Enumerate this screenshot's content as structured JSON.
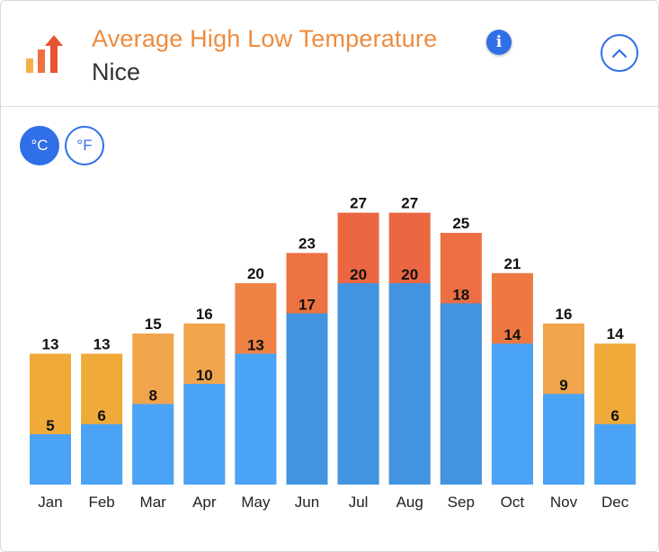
{
  "header": {
    "title": "Average High Low Temperature",
    "city": "Nice",
    "info_icon": "info-icon",
    "collapse_icon": "chevron-up-icon",
    "logo_icon": "temperature-bars-icon"
  },
  "units": {
    "celsius_label": "°C",
    "fahrenheit_label": "°F",
    "selected": "°C"
  },
  "colors": {
    "accent": "#2f6fe8",
    "title": "#ee8b3d"
  },
  "chart_data": {
    "type": "bar",
    "title": "Average High Low Temperature",
    "categories": [
      "Jan",
      "Feb",
      "Mar",
      "Apr",
      "May",
      "Jun",
      "Jul",
      "Aug",
      "Sep",
      "Oct",
      "Nov",
      "Dec"
    ],
    "series": [
      {
        "name": "High",
        "values": [
          13,
          13,
          15,
          16,
          20,
          23,
          27,
          27,
          25,
          21,
          16,
          14
        ],
        "colors": [
          "#efaa3a",
          "#efaa3a",
          "#f0a44c",
          "#f0a44c",
          "#ee8244",
          "#ed7241",
          "#ea6741",
          "#ea6741",
          "#ec6e43",
          "#ed7941",
          "#f0a44c",
          "#efaa3a"
        ]
      },
      {
        "name": "Low",
        "values": [
          5,
          6,
          8,
          10,
          13,
          17,
          20,
          20,
          18,
          14,
          9,
          6
        ],
        "colors": [
          "#4aa3f5",
          "#4aa3f5",
          "#4aa3f5",
          "#4aa3f5",
          "#4aa3f5",
          "#4294e0",
          "#4294e0",
          "#4294e0",
          "#4294e0",
          "#4aa3f5",
          "#4aa3f5",
          "#4aa3f5"
        ]
      }
    ],
    "unit": "°C",
    "ylim": [
      0,
      27
    ],
    "grid": false,
    "legend": "none"
  }
}
